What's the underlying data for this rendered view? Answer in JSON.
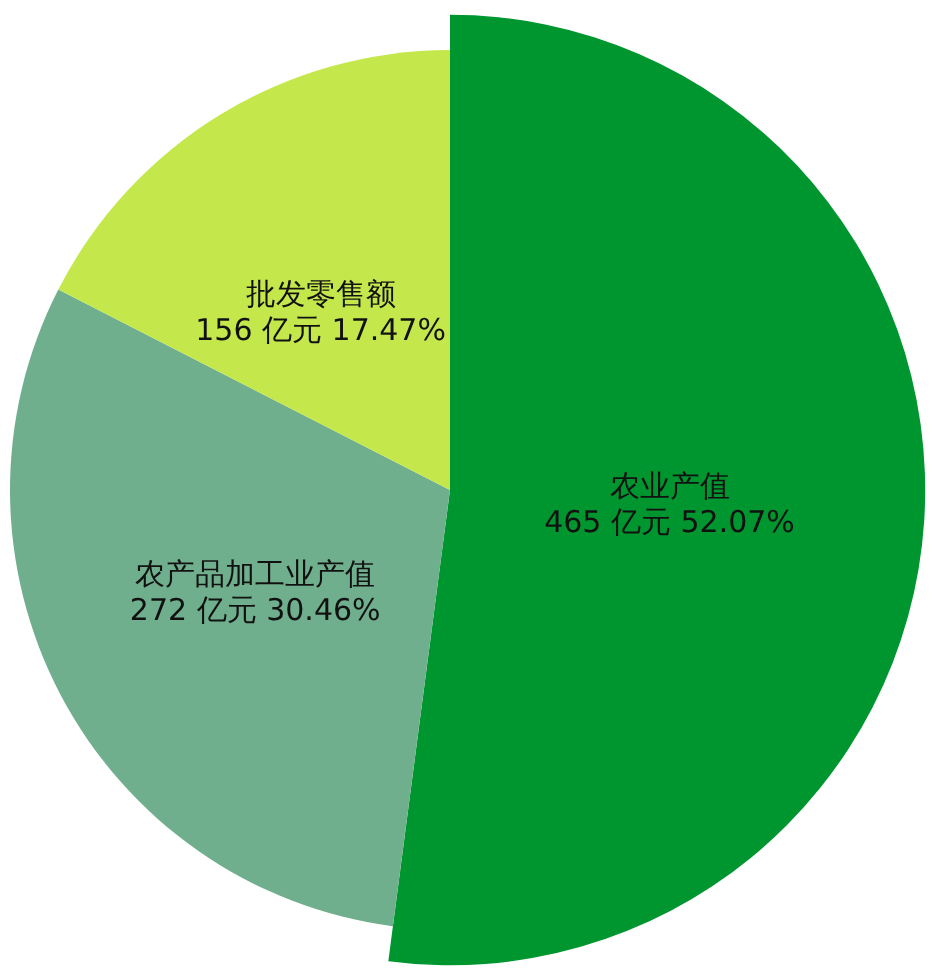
{
  "chart_data": {
    "type": "pie",
    "categories": [
      "农业产值",
      "农产品加工业产值",
      "批发零售额"
    ],
    "values": [
      465,
      272,
      156
    ],
    "colors": [
      "#00962f",
      "#70af8d",
      "#c4e84b"
    ],
    "value_labels": [
      "465 亿元  52.07%",
      "272 亿元  30.46%",
      "156 亿元  17.47%"
    ]
  }
}
